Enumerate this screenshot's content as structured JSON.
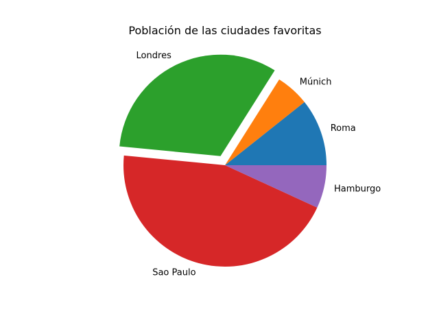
{
  "chart_data": {
    "type": "pie",
    "title": "Población de las ciudades favoritas",
    "start_angle_deg": 0,
    "direction": "counterclockwise",
    "slices": [
      {
        "label": "Roma",
        "value": 2.8,
        "color": "#1f77b4",
        "explode": 0
      },
      {
        "label": "Múnich",
        "value": 1.4,
        "color": "#ff7f0e",
        "explode": 0
      },
      {
        "label": "Londres",
        "value": 8.5,
        "color": "#2ca02c",
        "explode": 0.1
      },
      {
        "label": "Sao Paulo",
        "value": 11.7,
        "color": "#d62728",
        "explode": 0
      },
      {
        "label": "Hamburgo",
        "value": 1.8,
        "color": "#9467bd",
        "explode": 0
      }
    ]
  }
}
